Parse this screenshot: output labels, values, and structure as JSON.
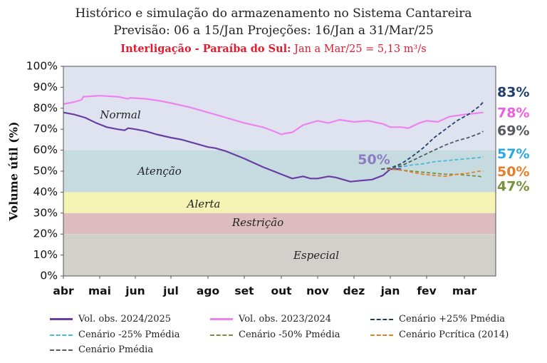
{
  "header": {
    "title": "Histórico e simulação do armazenamento no Sistema Cantareira",
    "subtitle": "Previsão: 06 a 15/Jan Projeções: 16/Jan a 31/Mar/25",
    "note_bold": "Interligação - Paraíba do Sul:",
    "note_rest": "Jan a Mar/25 = 5,13 m³/s"
  },
  "chart_data": {
    "type": "line",
    "title": "Histórico e simulação do armazenamento no Sistema Cantareira",
    "ylabel": "Volume útil (%)",
    "xlabel": "",
    "ylim": [
      0,
      100
    ],
    "yticks": [
      "0%",
      "10%",
      "20%",
      "30%",
      "40%",
      "50%",
      "60%",
      "70%",
      "80%",
      "90%",
      "100%"
    ],
    "xticks": [
      "abr",
      "mai",
      "jun",
      "jul",
      "ago",
      "set",
      "out",
      "nov",
      "dez",
      "jan",
      "fev",
      "mar"
    ],
    "x_unit": "months since 1 Apr",
    "zones": [
      {
        "name": "Normal",
        "from": 60,
        "to": 100,
        "color": "#dfe3ef"
      },
      {
        "name": "Atenção",
        "from": 40,
        "to": 60,
        "color": "#c6dbe0"
      },
      {
        "name": "Alerta",
        "from": 30,
        "to": 40,
        "color": "#f4f3b3"
      },
      {
        "name": "Restrição",
        "from": 20,
        "to": 30,
        "color": "#dcbcbe"
      },
      {
        "name": "Especial",
        "from": 0,
        "to": 20,
        "color": "#d1d0cb"
      }
    ],
    "series": [
      {
        "name": "Vol. obs. 2024/2025",
        "color": "#6a3da3",
        "dash": false,
        "x": [
          0,
          0.3,
          0.6,
          0.9,
          1.2,
          1.5,
          1.7,
          1.8,
          2.0,
          2.3,
          2.6,
          3.0,
          3.3,
          3.6,
          4.0,
          4.2,
          4.5,
          5.0,
          5.5,
          6.0,
          6.3,
          6.6,
          6.8,
          7.0,
          7.3,
          7.5,
          7.6,
          7.9,
          8.2,
          8.5,
          8.8,
          9.0,
          9.3
        ],
        "values": [
          78,
          77,
          75.5,
          73,
          71,
          70,
          69.5,
          70.5,
          70,
          69,
          67.5,
          66,
          65,
          63.5,
          61.5,
          61,
          59.5,
          56,
          52,
          48.5,
          46.5,
          47.5,
          46.5,
          46.5,
          47.5,
          47,
          46.5,
          45,
          45.5,
          46,
          48,
          51,
          51
        ]
      },
      {
        "name": "Vol. obs. 2023/2024",
        "color": "#ee82ee",
        "dash": false,
        "x": [
          0,
          0.3,
          0.5,
          0.55,
          1.0,
          1.5,
          1.8,
          1.85,
          2.3,
          2.7,
          3.0,
          3.5,
          4.0,
          4.5,
          5.0,
          5.5,
          5.8,
          6.0,
          6.1,
          6.3,
          6.6,
          7.0,
          7.3,
          7.6,
          8.0,
          8.4,
          8.8,
          9.0,
          9.3,
          9.5,
          9.8,
          10.0,
          10.3,
          10.6,
          11.0,
          11.5
        ],
        "values": [
          82,
          83,
          84,
          85.5,
          86,
          85.5,
          84.5,
          85,
          84.5,
          83.5,
          82.5,
          80.5,
          78,
          75.5,
          73,
          71,
          69,
          67.5,
          68,
          68.5,
          72,
          74,
          73,
          74.5,
          73.5,
          74,
          72.5,
          71,
          71,
          70.5,
          73,
          74,
          73.5,
          76,
          77,
          78
        ]
      },
      {
        "name": "Cenário +25% Pmédia",
        "color": "#1f3f6e",
        "dash": true,
        "x": [
          8.75,
          9.0,
          9.3,
          9.6,
          9.9,
          10.2,
          10.5,
          10.8,
          11.1,
          11.4,
          11.5
        ],
        "values": [
          51,
          51.5,
          53.5,
          57,
          61,
          66,
          70,
          74,
          77,
          81,
          83
        ]
      },
      {
        "name": "Cenário -25% Pmédia",
        "color": "#49b9dc",
        "dash": true,
        "x": [
          8.75,
          9.0,
          9.3,
          9.6,
          9.9,
          10.2,
          10.5,
          10.8,
          11.1,
          11.4,
          11.5
        ],
        "values": [
          51,
          51.5,
          52,
          53,
          53.5,
          54.5,
          55,
          55.5,
          56,
          56.5,
          57
        ]
      },
      {
        "name": "Cenário -50% Pmédia",
        "color": "#76923c",
        "dash": true,
        "x": [
          8.75,
          9.0,
          9.3,
          9.6,
          9.9,
          10.2,
          10.5,
          10.8,
          11.1,
          11.4,
          11.5
        ],
        "values": [
          51,
          51,
          50.5,
          50,
          49.5,
          49,
          48.5,
          48.5,
          48,
          47.5,
          47
        ]
      },
      {
        "name": "Cenário Pcrítica (2014)",
        "color": "#e57f29",
        "dash": true,
        "x": [
          8.75,
          9.0,
          9.3,
          9.6,
          9.9,
          10.2,
          10.5,
          10.8,
          11.1,
          11.4,
          11.5
        ],
        "values": [
          51,
          51,
          50.5,
          49.5,
          48.5,
          48,
          47.5,
          48.5,
          49,
          50,
          50
        ]
      },
      {
        "name": "Cenário Pmédia",
        "color": "#555a63",
        "dash": true,
        "x": [
          8.75,
          9.0,
          9.3,
          9.6,
          9.9,
          10.2,
          10.5,
          10.8,
          11.1,
          11.4,
          11.5
        ],
        "values": [
          51,
          51.5,
          52.5,
          55,
          57.5,
          60,
          62.5,
          64.5,
          66,
          68,
          69
        ]
      }
    ],
    "annotations": [
      {
        "text": "50%",
        "x": 8.55,
        "y": 54,
        "color": "#8e7cc3"
      }
    ],
    "end_labels": [
      {
        "text": "83%",
        "y": 87.5,
        "color": "#1f3f6e"
      },
      {
        "text": "78%",
        "y": 77.5,
        "color": "#ee5ee3"
      },
      {
        "text": "69%",
        "y": 69,
        "color": "#555a63"
      },
      {
        "text": "57%",
        "y": 58,
        "color": "#29a9e0"
      },
      {
        "text": "50%",
        "y": 49.5,
        "color": "#e57f29"
      },
      {
        "text": "47%",
        "y": 42.5,
        "color": "#76923c"
      }
    ],
    "legend_placement": "bottom",
    "grid": false
  }
}
